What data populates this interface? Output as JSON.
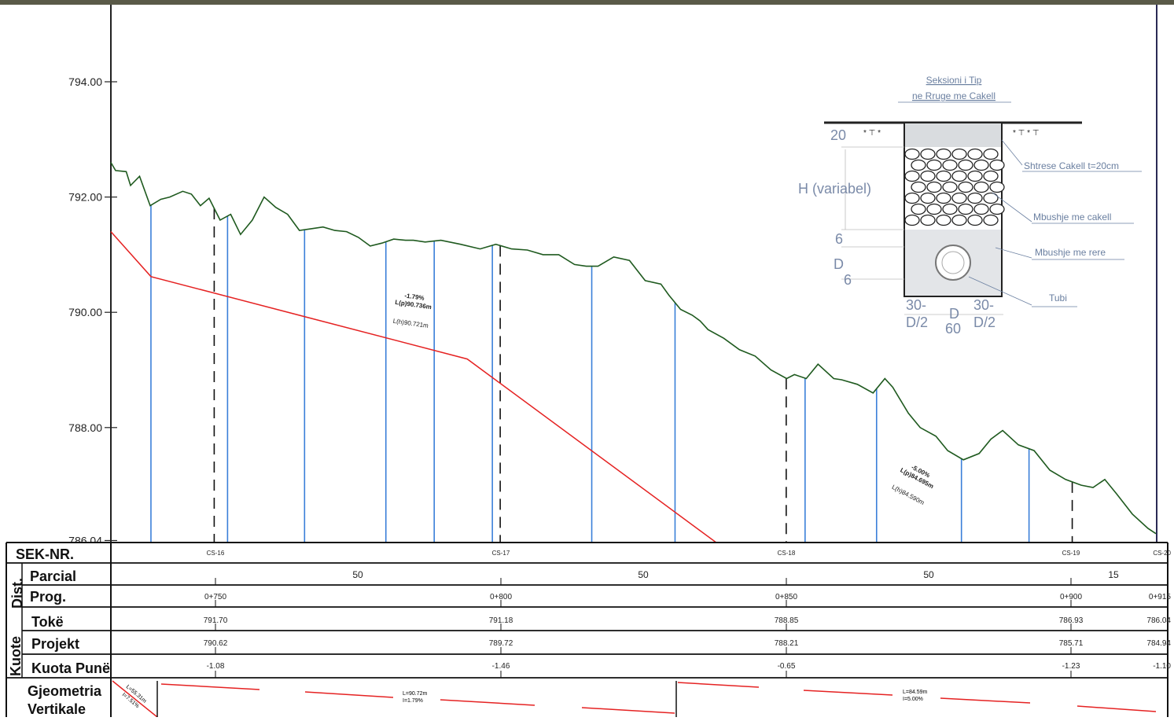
{
  "y_axis": {
    "ticks": [
      {
        "value": 794.0,
        "label": "794.00"
      },
      {
        "value": 792.0,
        "label": "792.00"
      },
      {
        "value": 790.0,
        "label": "790.00"
      },
      {
        "value": 788.0,
        "label": "788.00"
      },
      {
        "value": 786.04,
        "label": "786.04"
      }
    ]
  },
  "stations": [
    {
      "sek": "CS-16",
      "prog": "0+750",
      "toke": "791.70",
      "projekt": "790.62",
      "kuota_pune": "-1.08"
    },
    {
      "sek": "CS-17",
      "prog": "0+800",
      "toke": "791.18",
      "projekt": "789.72",
      "kuota_pune": "-1.46"
    },
    {
      "sek": "CS-18",
      "prog": "0+850",
      "toke": "788.85",
      "projekt": "788.21",
      "kuota_pune": "-0.65"
    },
    {
      "sek": "CS-19",
      "prog": "0+900",
      "toke": "786.93",
      "projekt": "785.71",
      "kuota_pune": "-1.23"
    },
    {
      "sek": "CS-20",
      "prog": "0+915",
      "toke": "786.04",
      "projekt": "784.94",
      "kuota_pune": "-1.10"
    }
  ],
  "parcial": [
    "50",
    "50",
    "50",
    "15"
  ],
  "row_labels": {
    "sek": "SEK-NR.",
    "parcial": "Parcial",
    "prog": "Prog.",
    "toke": "Tokë",
    "projekt": "Projekt",
    "kuota_pune": "Kuota Punë",
    "dist": "Dist.",
    "kuote": "Kuote",
    "gjeometria_1": "Gjeometria",
    "gjeometria_2": "Vertikale"
  },
  "slope_labels": {
    "first": {
      "slope": "-1.79%",
      "lp": "L(p)90.736m",
      "lh": "L(h)90.721m"
    },
    "second": {
      "slope": "-5.00%",
      "lp": "L(p)84.695m",
      "lh": "L(h)84.590m"
    }
  },
  "vertical_geometry": {
    "left": {
      "l": "L=55.31m",
      "i": "I=7.51%"
    },
    "mid": {
      "l": "L=90.72m",
      "i": "I=1.79%"
    },
    "right": {
      "l": "L=84.59m",
      "i": "I=5.00%"
    }
  },
  "inset": {
    "title_1": "Seksioni i Tip",
    "title_2": "ne Rruge me Cakell",
    "dim_20": "20",
    "dim_h": "H (variabel)",
    "dim_6a": "6",
    "dim_d": "D",
    "dim_6b": "6",
    "dim_30a": "30-",
    "dim_d2a": "D/2",
    "dim_dmid": "D",
    "dim_60": "60",
    "dim_30b": "30-",
    "dim_d2b": "D/2",
    "callout_1": "Shtrese Cakell t=20cm",
    "callout_2": "Mbushje me cakell",
    "callout_3": "Mbushje me rere",
    "callout_4": "Tubi"
  },
  "chart_data": {
    "type": "line",
    "ylim": [
      786.04,
      795.5
    ],
    "series": [
      {
        "x": [
          0.0,
          1.2,
          3.9,
          5.0,
          7.3,
          10.0,
          12.7,
          15.0,
          18.3,
          20.5,
          22.8,
          25.0,
          27.8,
          30.5,
          33.0,
          36.0,
          39.0,
          42.0,
          45.0,
          48.0,
          51.0,
          54.0,
          57.0,
          60.0,
          63.0,
          66.0,
          69.0,
          72.0,
          75.0,
          77.0,
          80.0,
          84.0,
          89.0,
          94.0,
          98.0,
          102.0,
          106.0,
          110.0,
          114.0,
          118.0,
          121.0,
          124.0,
          128.0,
          132.0,
          136.0,
          140.0,
          142.0,
          145.0,
          148.0,
          150.0,
          152.0,
          156.0,
          160.0,
          164.0,
          168.0,
          172.0,
          174.0,
          177.0,
          180.0,
          184.0,
          186.0,
          190.0,
          194.0,
          197.0,
          199.0,
          203.0,
          206.0,
          210.0,
          213.0,
          217.0,
          221.0,
          224.0,
          227.0,
          231.0,
          235.0,
          239.0,
          243.0,
          247.0,
          250.0,
          253.0,
          256.0,
          260.0,
          264.0,
          266.0
        ],
        "y": [
          792.6,
          792.46,
          792.44,
          792.2,
          792.36,
          791.85,
          791.96,
          792.0,
          792.1,
          792.05,
          791.85,
          791.98,
          791.6,
          791.7,
          791.35,
          791.6,
          792.0,
          791.82,
          791.7,
          791.42,
          791.45,
          791.48,
          791.42,
          791.4,
          791.3,
          791.15,
          791.2,
          791.27,
          791.25,
          791.25,
          791.22,
          791.25,
          791.18,
          791.1,
          791.18,
          791.1,
          791.08,
          791.0,
          791.0,
          790.83,
          790.8,
          790.8,
          790.96,
          790.9,
          790.55,
          790.49,
          790.3,
          790.05,
          789.95,
          789.85,
          789.7,
          789.55,
          789.35,
          789.24,
          789.0,
          788.85,
          788.92,
          788.85,
          789.1,
          788.85,
          788.83,
          788.75,
          788.6,
          788.85,
          788.7,
          788.25,
          788.0,
          787.85,
          787.6,
          787.44,
          787.55,
          787.8,
          787.95,
          787.7,
          787.6,
          787.26,
          787.1,
          787.0,
          786.96,
          787.1,
          786.85,
          786.5,
          786.25,
          786.16
        ]
      },
      {
        "x": [
          0.0,
          10.2,
          90.7,
          175.3
        ],
        "y": [
          791.4,
          790.62,
          789.19,
          784.94
        ]
      }
    ]
  }
}
